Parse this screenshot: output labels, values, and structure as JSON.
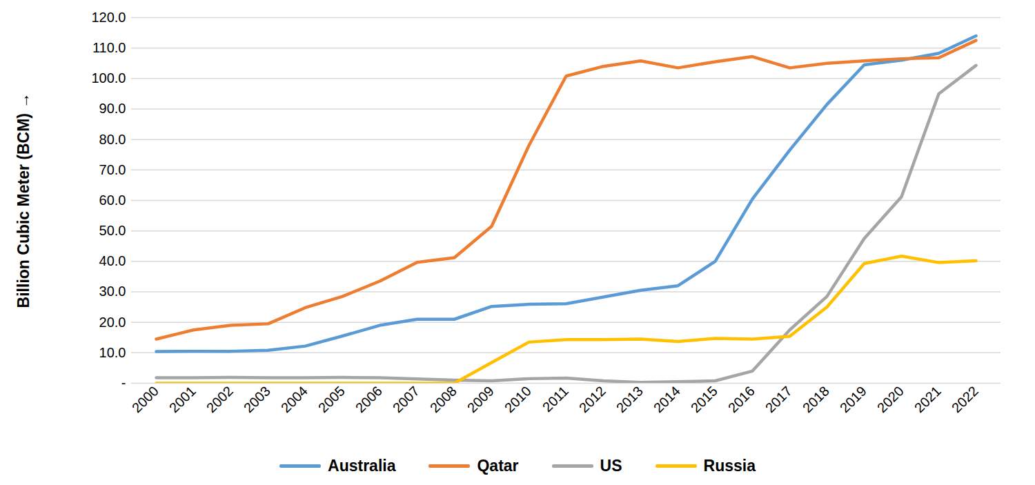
{
  "chart_data": {
    "type": "line",
    "y_label": "Billion Cubic Meter (BCM)",
    "categories": [
      "2000",
      "2001",
      "2002",
      "2003",
      "2004",
      "2005",
      "2006",
      "2007",
      "2008",
      "2009",
      "2010",
      "2011",
      "2012",
      "2013",
      "2014",
      "2015",
      "2016",
      "2017",
      "2018",
      "2019",
      "2020",
      "2021",
      "2022"
    ],
    "series": [
      {
        "name": "Australia",
        "color": "#5b9bd5",
        "values": [
          10.4,
          10.5,
          10.5,
          10.8,
          12.2,
          15.5,
          19.0,
          21.0,
          21.0,
          25.2,
          25.9,
          26.1,
          28.3,
          30.5,
          32.0,
          40.0,
          60.5,
          76.5,
          91.5,
          104.5,
          106.0,
          108.3,
          114.0
        ]
      },
      {
        "name": "Qatar",
        "color": "#ed7d31",
        "values": [
          14.5,
          17.5,
          19.0,
          19.5,
          24.8,
          28.5,
          33.5,
          39.7,
          41.2,
          51.5,
          78.0,
          100.8,
          104.0,
          105.8,
          103.5,
          105.5,
          107.2,
          103.5,
          105.0,
          105.8,
          106.5,
          106.8,
          112.5
        ]
      },
      {
        "name": "US",
        "color": "#a5a5a5",
        "values": [
          1.8,
          1.8,
          1.9,
          1.8,
          1.8,
          1.9,
          1.8,
          1.4,
          1.0,
          0.8,
          1.5,
          1.7,
          0.8,
          0.3,
          0.5,
          0.8,
          4.0,
          17.5,
          28.5,
          47.5,
          61.2,
          95.0,
          104.3
        ]
      },
      {
        "name": "Russia",
        "color": "#ffc000",
        "values": [
          0,
          0,
          0,
          0,
          0,
          0,
          0,
          0,
          0,
          6.8,
          13.5,
          14.3,
          14.3,
          14.5,
          13.7,
          14.7,
          14.5,
          15.4,
          25.0,
          39.3,
          41.7,
          39.6,
          40.2
        ]
      }
    ],
    "ylim": [
      0,
      120
    ],
    "yticks": [
      {
        "value": 0,
        "label": "-"
      },
      {
        "value": 10,
        "label": "10.0"
      },
      {
        "value": 20,
        "label": "20.0"
      },
      {
        "value": 30,
        "label": "30.0"
      },
      {
        "value": 40,
        "label": "40.0"
      },
      {
        "value": 50,
        "label": "50.0"
      },
      {
        "value": 60,
        "label": "60.0"
      },
      {
        "value": 70,
        "label": "70.0"
      },
      {
        "value": 80,
        "label": "80.0"
      },
      {
        "value": 90,
        "label": "90.0"
      },
      {
        "value": 100,
        "label": "100.0"
      },
      {
        "value": 110,
        "label": "110.0"
      },
      {
        "value": 120,
        "label": "120.0"
      }
    ],
    "grid": true,
    "legend": "bottom"
  }
}
